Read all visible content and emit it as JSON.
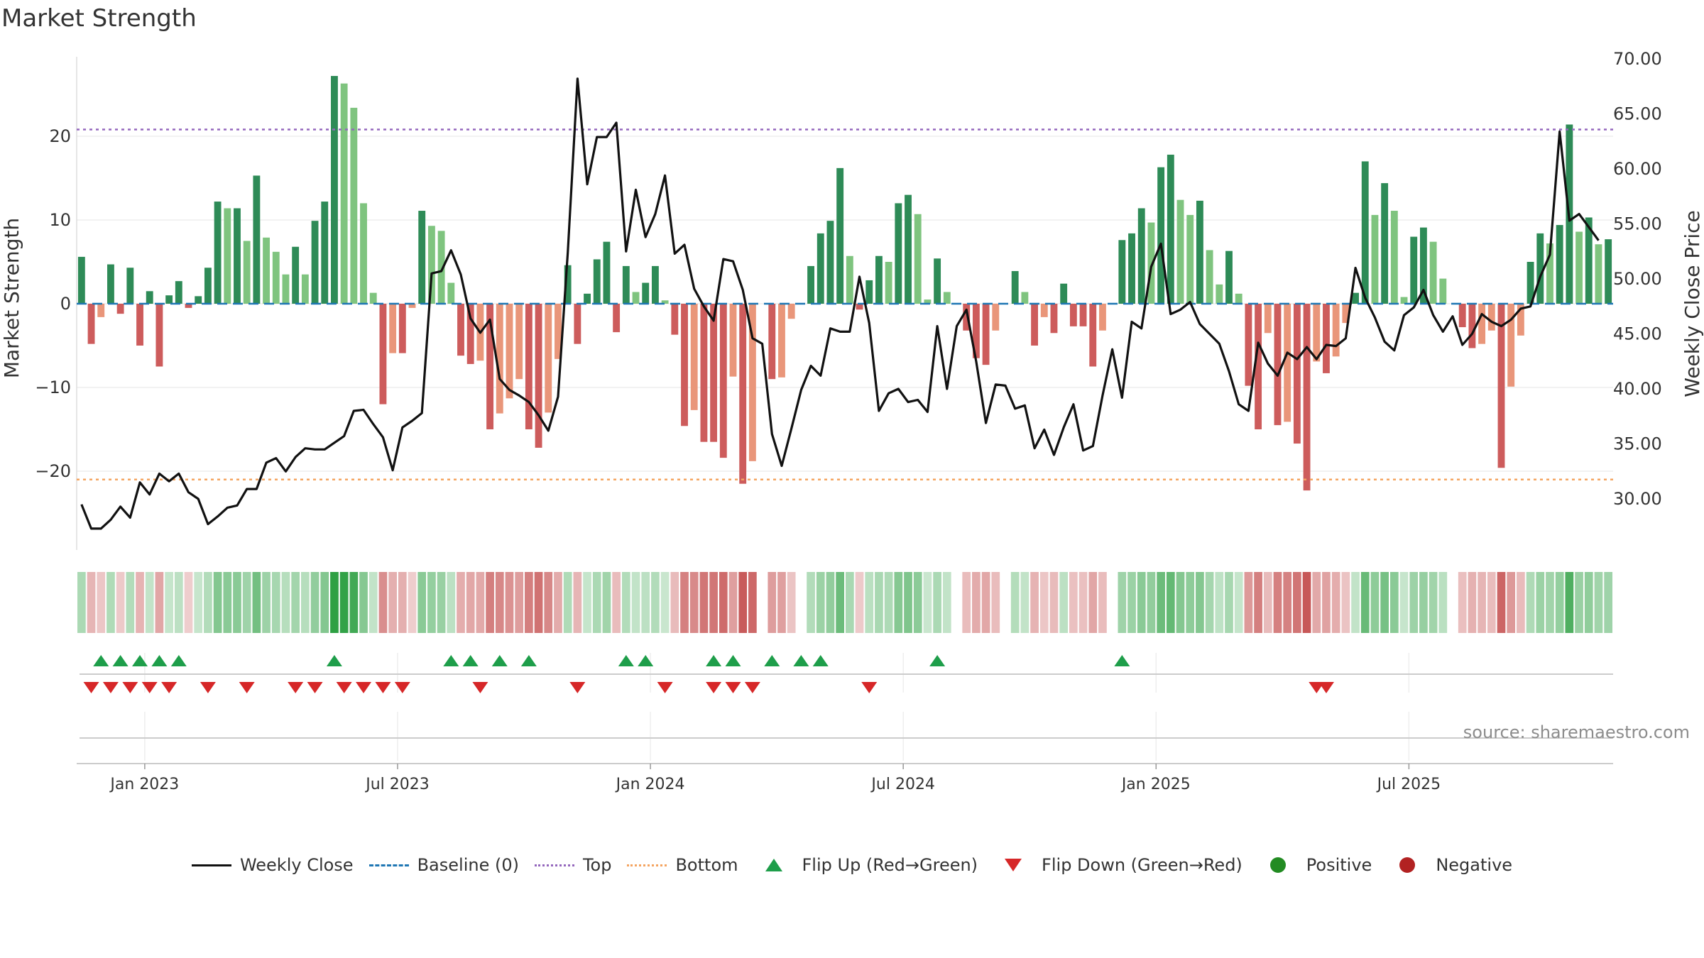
{
  "title": "Market Strength",
  "source": "source: sharemaestro.com",
  "axes": {
    "left_label": "Market Strength",
    "right_label": "Weekly Close Price",
    "left_ticks": [
      "20",
      "10",
      "0",
      "−10",
      "−20"
    ],
    "right_ticks": [
      "70.00",
      "65.00",
      "60.00",
      "55.00",
      "50.00",
      "45.00",
      "40.00",
      "35.00",
      "30.00"
    ],
    "x_ticks": [
      "Jan 2023",
      "Jul 2023",
      "Jan 2024",
      "Jul 2024",
      "Jan 2025",
      "Jul 2025"
    ]
  },
  "legend": {
    "weekly_close": "Weekly Close",
    "baseline": "Baseline (0)",
    "top": "Top",
    "bottom": "Bottom",
    "flip_up": "Flip Up (Red→Green)",
    "flip_down": "Flip Down (Green→Red)",
    "positive": "Positive",
    "negative": "Negative"
  },
  "colors": {
    "green_dark": "#2e8b57",
    "green_light": "#7fc47f",
    "red_dark": "#cd5c5c",
    "red_light": "#e9967a",
    "price_line": "#111111",
    "baseline": "#1f77b4",
    "top_line": "#9467bd",
    "bottom_line": "#f4a460",
    "flip_up": "#1e9e4a",
    "flip_down": "#d62728",
    "positive": "#228b22",
    "negative": "#b22222"
  },
  "chart_data": {
    "type": "bar",
    "title": "Market Strength",
    "x_start_week": 0,
    "x_tick_weeks": [
      7,
      33,
      59,
      85,
      111,
      137
    ],
    "ylim_left": [
      -28,
      29
    ],
    "ylim_right": [
      25,
      70
    ],
    "top_threshold": 20.8,
    "bottom_threshold": -21.0,
    "strength": [
      5.6,
      -4.8,
      -1.6,
      4.7,
      -1.2,
      4.3,
      -5.0,
      1.5,
      -7.5,
      1.0,
      2.7,
      -0.5,
      0.9,
      4.3,
      12.2,
      11.4,
      11.4,
      7.5,
      15.3,
      7.9,
      6.2,
      3.5,
      6.8,
      3.5,
      9.9,
      12.2,
      27.2,
      26.3,
      23.4,
      12.0,
      1.3,
      -12.0,
      -5.9,
      -5.9,
      -0.5,
      11.1,
      9.3,
      8.7,
      2.5,
      -6.2,
      -7.2,
      -6.8,
      -15.0,
      -13.1,
      -11.3,
      -9.0,
      -15.0,
      -17.2,
      -13.0,
      -6.6,
      4.6,
      -4.8,
      1.2,
      5.3,
      7.4,
      -3.4,
      4.5,
      1.4,
      2.5,
      4.5,
      0.4,
      -3.7,
      -14.6,
      -12.7,
      -16.5,
      -16.5,
      -18.4,
      -8.7,
      -21.5,
      -18.8,
      0,
      -9.0,
      -8.8,
      -1.8,
      0,
      4.5,
      8.4,
      9.9,
      16.2,
      5.7,
      -0.7,
      2.8,
      5.7,
      5.0,
      12.0,
      13.0,
      10.7,
      0.5,
      5.4,
      1.4,
      0,
      -3.2,
      -6.5,
      -7.3,
      -3.2,
      0,
      3.9,
      1.4,
      -5.0,
      -1.6,
      -3.5,
      2.4,
      -2.7,
      -2.7,
      -7.5,
      -3.2,
      0,
      7.6,
      8.4,
      11.4,
      9.7,
      16.3,
      17.8,
      12.4,
      10.6,
      12.3,
      6.4,
      2.3,
      6.3,
      1.2,
      -9.8,
      -15.0,
      -3.5,
      -14.5,
      -14.1,
      -16.7,
      -22.3,
      -6.9,
      -8.3,
      -6.3,
      -2.3,
      1.3,
      17.0,
      10.6,
      14.4,
      11.1,
      0.8,
      8.0,
      9.1,
      7.4,
      3.0,
      0,
      -2.8,
      -5.3,
      -4.8,
      -3.2,
      -19.6,
      -9.9,
      -3.8,
      5.0,
      8.4,
      7.2,
      9.4,
      21.4,
      8.6,
      10.3,
      7.1,
      7.7
    ],
    "price": [
      29.5,
      27.3,
      27.3,
      28.1,
      29.3,
      28.3,
      31.5,
      30.4,
      32.3,
      31.6,
      32.3,
      30.6,
      30.0,
      27.7,
      28.4,
      29.2,
      29.4,
      30.9,
      30.9,
      33.3,
      33.7,
      32.5,
      33.8,
      34.6,
      34.5,
      34.5,
      35.1,
      35.7,
      38.0,
      38.1,
      36.8,
      35.6,
      32.6,
      36.5,
      37.1,
      37.8,
      50.5,
      50.7,
      52.6,
      50.4,
      46.4,
      45.1,
      46.3,
      40.9,
      39.9,
      39.4,
      38.8,
      37.6,
      36.2,
      39.3,
      52.4,
      68.2,
      58.6,
      62.9,
      62.9,
      64.2,
      52.5,
      58.1,
      53.8,
      55.9,
      59.4,
      52.3,
      53.1,
      49.1,
      47.5,
      46.2,
      51.8,
      51.6,
      49.0,
      44.6,
      44.1,
      35.9,
      33.0,
      36.4,
      39.9,
      42.1,
      41.2,
      45.5,
      45.2,
      45.2,
      50.2,
      46.0,
      38.0,
      39.6,
      40.0,
      38.8,
      39.0,
      37.9,
      45.7,
      40.0,
      45.7,
      47.2,
      42.5,
      36.9,
      40.4,
      40.3,
      38.2,
      38.5,
      34.6,
      36.3,
      34.0,
      36.5,
      38.6,
      34.4,
      34.8,
      39.4,
      43.6,
      39.2,
      46.1,
      45.5,
      51.1,
      53.2,
      46.8,
      47.2,
      47.9,
      45.9,
      45.0,
      44.1,
      41.6,
      38.6,
      38.0,
      44.2,
      42.3,
      41.2,
      43.3,
      42.7,
      43.8,
      42.7,
      44.0,
      43.9,
      44.6,
      51.0,
      48.3,
      46.5,
      44.3,
      43.5,
      46.7,
      47.4,
      49.0,
      46.7,
      45.2,
      46.6,
      44.0,
      45.0,
      46.8,
      46.1,
      45.7,
      46.3,
      47.3,
      47.5,
      50.2,
      52.2,
      63.4,
      55.3,
      55.9,
      54.7,
      53.5
    ],
    "flip_up_weeks": [
      2,
      4,
      6,
      8,
      10,
      26,
      38,
      40,
      43,
      46,
      56,
      58,
      65,
      67,
      71,
      74,
      76,
      88,
      107
    ],
    "flip_down_weeks": [
      1,
      3,
      5,
      7,
      9,
      13,
      17,
      22,
      24,
      27,
      29,
      31,
      33,
      41,
      51,
      60,
      65,
      67,
      69,
      81,
      127,
      128
    ]
  }
}
